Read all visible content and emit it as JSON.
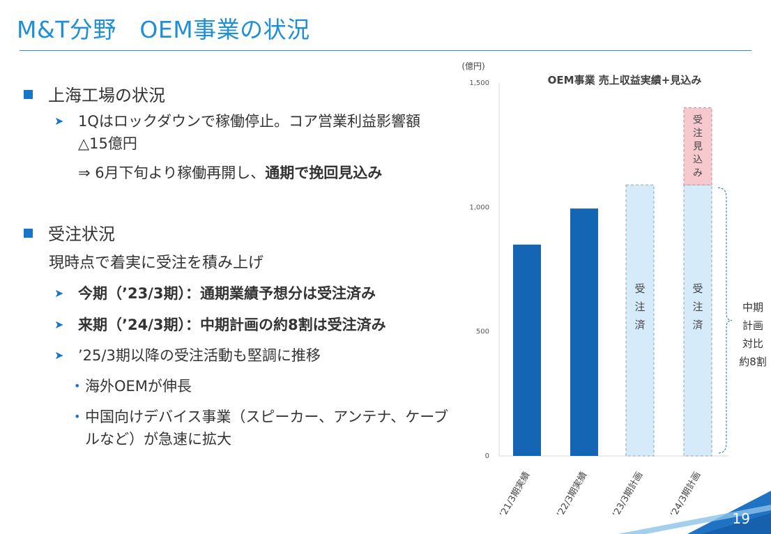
{
  "header": {
    "title": "M&T分野　OEM事業の状況"
  },
  "body": {
    "section1": {
      "heading": "上海工場の状況",
      "bullet1_line1": "1Qはロックダウンで稼働停止。コア営業利益影響額",
      "bullet1_line2": "△15億円",
      "bullet1_sub_prefix": "⇒ 6月下旬より稼働再開し、",
      "bullet1_sub_bold": "通期で挽回見込み"
    },
    "section2": {
      "heading": "受注状況",
      "intro": "現時点で着実に受注を積み上げ",
      "bullet1": "今期（’23/3期）：通期業績予想分は受注済み",
      "bullet2": "来期（’24/3期）：中期計画の約8割は受注済み",
      "bullet3": "’25/3期以降の受注活動も堅調に推移",
      "sub1": "海外OEMが伸長",
      "sub2_line1": "中国向けデバイス事業（スピーカー、アンテナ、ケーブ",
      "sub2_line2": "ルなど）が急速に拡大"
    }
  },
  "chart_data": {
    "type": "bar",
    "title": "OEM事業  売上収益実績+見込み",
    "ylabel": "(億円)",
    "ylim": [
      0,
      1500
    ],
    "yticks": [
      "0",
      "500",
      "1,000",
      "1,500"
    ],
    "categories": [
      "’21/3期実績",
      "’22/3期実績",
      "’23/3期計画",
      "’24/3期計画"
    ],
    "series": [
      {
        "values": [
          850,
          995,
          1090,
          1090
        ]
      },
      {
        "values": [
          0,
          0,
          0,
          310
        ]
      }
    ],
    "bar_labels": {
      "ordered": "受注済",
      "expected": "受注見込み"
    },
    "brace_label": "中期計画対比約8割",
    "colors": {
      "actual": "#1565b5",
      "plan_fill": "#d6ebfa",
      "plan_border": "#8fa3b0",
      "expected_fill": "#f6c9cf",
      "expected_border": "#c08a90",
      "brace": "#1d6fbf"
    },
    "grid": false
  },
  "footer": {
    "page_number": "19"
  }
}
